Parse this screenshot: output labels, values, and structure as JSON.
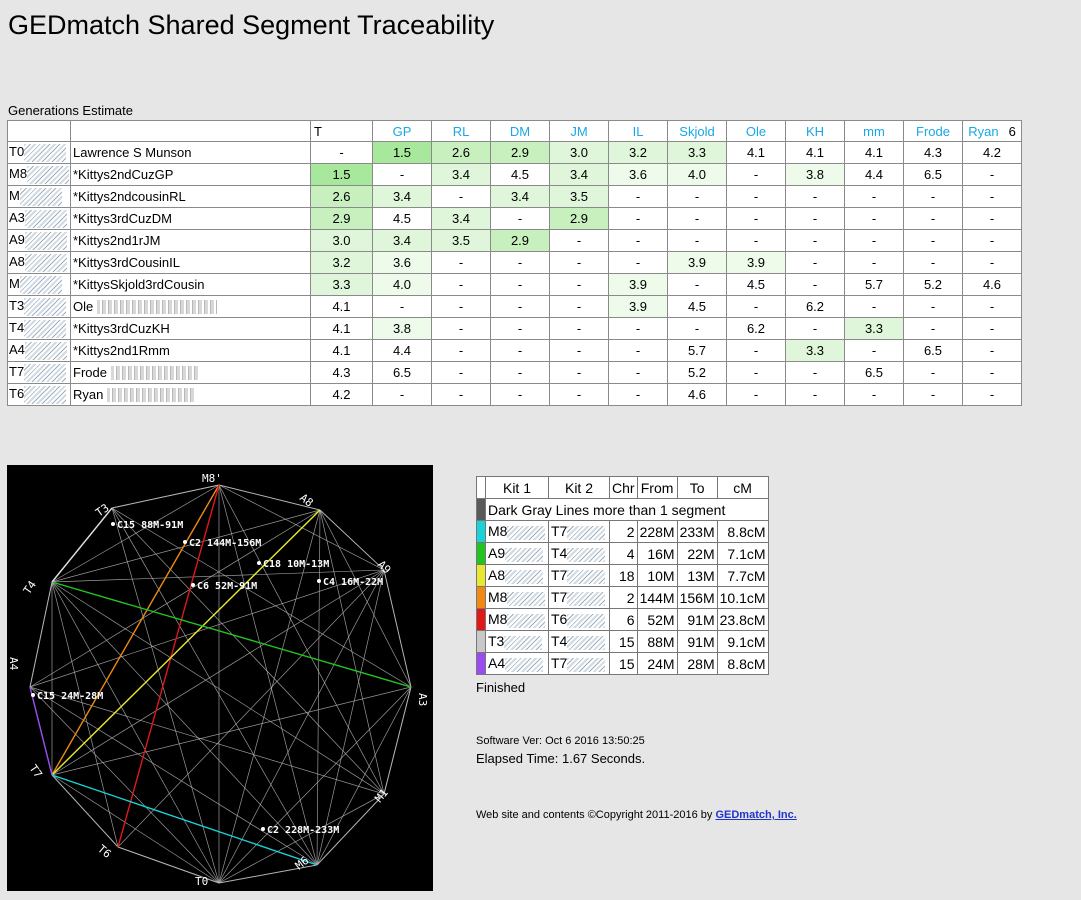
{
  "page": {
    "title": "GEDmatch Shared Segment Traceability",
    "generations_label": "Generations Estimate"
  },
  "gen_table": {
    "t_header": "T",
    "columns": [
      "GP",
      "RL",
      "DM",
      "JM",
      "IL",
      "Skjold",
      "Ole",
      "KH",
      "mm",
      "Frode",
      "Ryan"
    ],
    "last_column_suffix": "6",
    "rows": [
      {
        "kit": "T0",
        "name": "Lawrence S Munson",
        "values": [
          "-",
          "1.5",
          "2.6",
          "2.9",
          "3.0",
          "3.2",
          "3.3",
          "4.1",
          "4.1",
          "4.1",
          "4.3",
          "4.2"
        ]
      },
      {
        "kit": "M8",
        "name": "*Kittys2ndCuzGP",
        "values": [
          "1.5",
          "-",
          "3.4",
          "4.5",
          "3.4",
          "3.6",
          "4.0",
          "-",
          "3.8",
          "4.4",
          "6.5",
          "-"
        ]
      },
      {
        "kit": "M",
        "name": "*Kittys2ndcousinRL",
        "values": [
          "2.6",
          "3.4",
          "-",
          "3.4",
          "3.5",
          "-",
          "-",
          "-",
          "-",
          "-",
          "-",
          "-"
        ]
      },
      {
        "kit": "A3",
        "name": "*Kittys3rdCuzDM",
        "values": [
          "2.9",
          "4.5",
          "3.4",
          "-",
          "2.9",
          "-",
          "-",
          "-",
          "-",
          "-",
          "-",
          "-"
        ]
      },
      {
        "kit": "A9",
        "name": "*Kittys2nd1rJM",
        "values": [
          "3.0",
          "3.4",
          "3.5",
          "2.9",
          "-",
          "-",
          "-",
          "-",
          "-",
          "-",
          "-",
          "-"
        ]
      },
      {
        "kit": "A8",
        "name": "*Kittys3rdCousinIL",
        "values": [
          "3.2",
          "3.6",
          "-",
          "-",
          "-",
          "-",
          "3.9",
          "3.9",
          "-",
          "-",
          "-",
          "-"
        ]
      },
      {
        "kit": "M",
        "name": "*KittysSkjold3rdCousin",
        "values": [
          "3.3",
          "4.0",
          "-",
          "-",
          "-",
          "3.9",
          "-",
          "4.5",
          "-",
          "5.7",
          "5.2",
          "4.6"
        ]
      },
      {
        "kit": "T3",
        "name": "Ole",
        "values": [
          "4.1",
          "-",
          "-",
          "-",
          "-",
          "3.9",
          "4.5",
          "-",
          "6.2",
          "-",
          "-",
          "-"
        ]
      },
      {
        "kit": "T4",
        "name": "*Kittys3rdCuzKH",
        "values": [
          "4.1",
          "3.8",
          "-",
          "-",
          "-",
          "-",
          "-",
          "6.2",
          "-",
          "3.3",
          "-",
          "-"
        ]
      },
      {
        "kit": "A4",
        "name": "*Kittys2nd1Rmm",
        "values": [
          "4.1",
          "4.4",
          "-",
          "-",
          "-",
          "-",
          "5.7",
          "-",
          "3.3",
          "-",
          "6.5",
          "-"
        ]
      },
      {
        "kit": "T7",
        "name": "Frode",
        "values": [
          "4.3",
          "6.5",
          "-",
          "-",
          "-",
          "-",
          "5.2",
          "-",
          "-",
          "6.5",
          "-",
          "-"
        ]
      },
      {
        "kit": "T6",
        "name": "Ryan",
        "values": [
          "4.2",
          "-",
          "-",
          "-",
          "-",
          "-",
          "4.6",
          "-",
          "-",
          "-",
          "-",
          "-"
        ]
      }
    ]
  },
  "graph": {
    "nodes": [
      {
        "id": "M8",
        "label": "M8'"
      },
      {
        "id": "A8",
        "label": "A8"
      },
      {
        "id": "A9",
        "label": "A9"
      },
      {
        "id": "A3",
        "label": "A3"
      },
      {
        "id": "M1",
        "label": "M1"
      },
      {
        "id": "M6",
        "label": "M6"
      },
      {
        "id": "T0",
        "label": "T0"
      },
      {
        "id": "T6",
        "label": "T6"
      },
      {
        "id": "T7",
        "label": "T7"
      },
      {
        "id": "A4",
        "label": "A4"
      },
      {
        "id": "T4",
        "label": "T4"
      },
      {
        "id": "T3",
        "label": "T3"
      }
    ],
    "segment_labels": [
      {
        "text": "C15 88M-91M"
      },
      {
        "text": "C2 144M-156M"
      },
      {
        "text": "C18 10M-13M"
      },
      {
        "text": "C4 16M-22M"
      },
      {
        "text": "C6 52M-91M"
      },
      {
        "text": "C15 24M-28M"
      },
      {
        "text": "C2 228M-233M"
      }
    ],
    "colors": {
      "background": "#000000",
      "lines": "#b4b4b4",
      "cyan": "#19d3d9",
      "green": "#22c422",
      "yellow": "#e8e832",
      "orange": "#f08a14",
      "red": "#e01818",
      "purple": "#9b4cf0"
    }
  },
  "segments": {
    "headers": [
      "Kit 1",
      "Kit 2",
      "Chr",
      "From",
      "To",
      "cM"
    ],
    "note": "Dark Gray Lines more than 1 segment",
    "note_color": "#5a5a5a",
    "rows": [
      {
        "color": "#19d3d9",
        "kit1": "M8",
        "kit2": "T7",
        "chr": "2",
        "from": "228M",
        "to": "233M",
        "cm": "8.8cM"
      },
      {
        "color": "#22c422",
        "kit1": "A9",
        "kit2": "T4",
        "chr": "4",
        "from": "16M",
        "to": "22M",
        "cm": "7.1cM"
      },
      {
        "color": "#e8e832",
        "kit1": "A8",
        "kit2": "T7",
        "chr": "18",
        "from": "10M",
        "to": "13M",
        "cm": "7.7cM"
      },
      {
        "color": "#f08a14",
        "kit1": "M8",
        "kit2": "T7",
        "chr": "2",
        "from": "144M",
        "to": "156M",
        "cm": "10.1cM"
      },
      {
        "color": "#e01818",
        "kit1": "M8",
        "kit2": "T6",
        "chr": "6",
        "from": "52M",
        "to": "91M",
        "cm": "23.8cM"
      },
      {
        "color": "#c8c8c8",
        "kit1": "T3",
        "kit2": "T4",
        "chr": "15",
        "from": "88M",
        "to": "91M",
        "cm": "9.1cM"
      },
      {
        "color": "#9b4cf0",
        "kit1": "A4",
        "kit2": "T7",
        "chr": "15",
        "from": "24M",
        "to": "28M",
        "cm": "8.8cM"
      }
    ]
  },
  "footer": {
    "finished": "Finished",
    "software": "Software Ver: Oct 6 2016 13:50:25",
    "elapsed": "Elapsed Time: 1.67 Seconds.",
    "copyright": "Web site and contents ©Copyright 2011-2016 by ",
    "link": "GEDmatch, Inc."
  }
}
